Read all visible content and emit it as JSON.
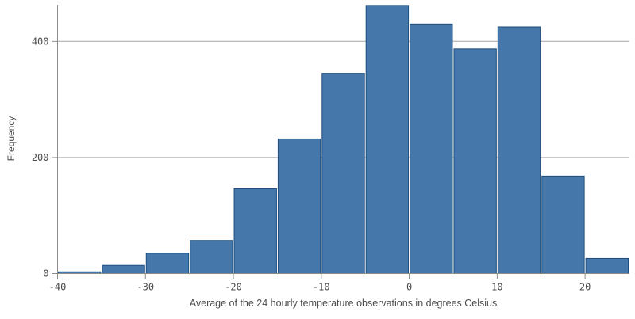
{
  "chart_data": {
    "type": "bar",
    "subtype": "histogram",
    "title": "",
    "xlabel": "Average of the 24 hourly temperature observations in degrees Celsius",
    "ylabel": "Frequency",
    "bin_width": 5,
    "bin_edges": [
      -40,
      -35,
      -30,
      -25,
      -20,
      -15,
      -10,
      -5,
      0,
      5,
      10,
      15,
      20,
      25
    ],
    "values": [
      3,
      14,
      35,
      57,
      146,
      232,
      345,
      462,
      430,
      387,
      425,
      168,
      26
    ],
    "x_ticks": [
      -40,
      -30,
      -20,
      -10,
      0,
      10,
      20
    ],
    "x_tick_labels": [
      "-40",
      "-30",
      "-20",
      "-10",
      "0",
      "10",
      "20"
    ],
    "y_ticks": [
      0,
      200,
      400
    ],
    "y_tick_labels": [
      "0",
      "200",
      "400"
    ],
    "xlim": [
      -40,
      25
    ],
    "ylim": [
      0,
      470
    ],
    "grid": "horizontal",
    "legend": "none",
    "colors": {
      "bar_fill": "#4577ab",
      "bar_stroke": "#1e4e7e",
      "axis_line": "#8c8c8c",
      "grid_line": "#a6a6a6",
      "tick_text": "#4d4d4d",
      "title_text": "#4c4c4c",
      "background": "#ffffff"
    }
  }
}
